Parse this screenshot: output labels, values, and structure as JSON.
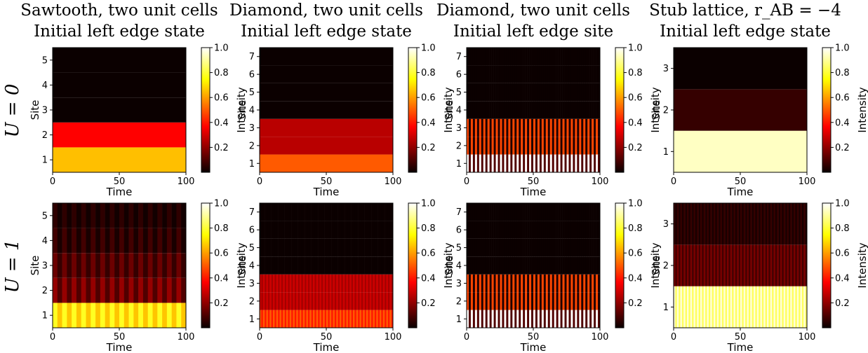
{
  "row_labels": [
    "U = 0",
    "U = 1"
  ],
  "colorbar": {
    "label": "Intensity",
    "ticks": [
      "0.2",
      "0.4",
      "0.6",
      "0.8",
      "1.0"
    ],
    "tick_values": [
      0.2,
      0.4,
      0.6,
      0.8,
      1.0
    ],
    "colormap": "hot"
  },
  "chart_data": [
    {
      "type": "heatmap",
      "row": 0,
      "col": 0,
      "title": "Sawtooth, two unit cells",
      "subtitle": "Initial left edge state",
      "xlabel": "Time",
      "ylabel": "Site",
      "xlim": [
        0,
        100
      ],
      "ylim": [
        0.5,
        5.5
      ],
      "xticks": [
        "0",
        "50",
        "100"
      ],
      "yticks": [
        "1",
        "2",
        "3",
        "4",
        "5"
      ],
      "colorbar_range": [
        0,
        1
      ],
      "sites": [
        1,
        2,
        3,
        4,
        5
      ],
      "intensity": [
        0.65,
        0.35,
        0.0,
        0.0,
        0.0
      ],
      "oscillating": false
    },
    {
      "type": "heatmap",
      "row": 0,
      "col": 1,
      "title": "Diamond, two unit cells",
      "subtitle": "Initial left edge state",
      "xlabel": "Time",
      "ylabel": "Site",
      "xlim": [
        0,
        100
      ],
      "ylim": [
        0.5,
        7.5
      ],
      "xticks": [
        "0",
        "50",
        "100"
      ],
      "yticks": [
        "1",
        "2",
        "3",
        "4",
        "5",
        "6",
        "7"
      ],
      "colorbar_range": [
        0,
        1
      ],
      "sites": [
        1,
        2,
        3,
        4,
        5,
        6,
        7
      ],
      "intensity": [
        0.5,
        0.25,
        0.25,
        0.0,
        0.0,
        0.0,
        0.0
      ],
      "oscillating": false
    },
    {
      "type": "heatmap",
      "row": 0,
      "col": 2,
      "title": "Diamond, two unit cells",
      "subtitle": "Initial left edge site",
      "xlabel": "Time",
      "ylabel": "Site",
      "xlim": [
        0,
        100
      ],
      "ylim": [
        0.5,
        7.5
      ],
      "xticks": [
        "0",
        "50",
        "100"
      ],
      "yticks": [
        "1",
        "2",
        "3",
        "4",
        "5",
        "6",
        "7"
      ],
      "colorbar_range": [
        0,
        1
      ],
      "sites": [
        1,
        2,
        3,
        4,
        5,
        6,
        7
      ],
      "intensity": [
        0.55,
        0.25,
        0.25,
        0.0,
        0.0,
        0.0,
        0.0
      ],
      "oscillating": true,
      "oscillation": {
        "period_count": 32,
        "amplitude": [
          0.45,
          0.22,
          0.22,
          0,
          0,
          0,
          0
        ]
      }
    },
    {
      "type": "heatmap",
      "row": 0,
      "col": 3,
      "title": "Stub lattice, r_AB = −4",
      "subtitle": "Initial left edge state",
      "xlabel": "Time",
      "ylabel": "Site",
      "xlim": [
        0,
        100
      ],
      "ylim": [
        0.5,
        3.5
      ],
      "xticks": [
        "0",
        "50",
        "100"
      ],
      "yticks": [
        "1",
        "2",
        "3"
      ],
      "colorbar_range": [
        0,
        1
      ],
      "sites": [
        1,
        2,
        3
      ],
      "intensity": [
        0.94,
        0.06,
        0.0
      ],
      "oscillating": false
    },
    {
      "type": "heatmap",
      "row": 1,
      "col": 0,
      "title": "",
      "subtitle": "",
      "xlabel": "Time",
      "ylabel": "Site",
      "xlim": [
        0,
        100
      ],
      "ylim": [
        0.5,
        5.5
      ],
      "xticks": [
        "0",
        "50",
        "100"
      ],
      "yticks": [
        "1",
        "2",
        "3",
        "4",
        "5"
      ],
      "colorbar_range": [
        0,
        1
      ],
      "sites": [
        1,
        2,
        3,
        4,
        5
      ],
      "intensity": [
        0.72,
        0.15,
        0.1,
        0.05,
        0.03
      ],
      "oscillating": true,
      "oscillation": {
        "period_count": 14,
        "amplitude": [
          0.06,
          0.05,
          0.04,
          0.03,
          0.02
        ]
      }
    },
    {
      "type": "heatmap",
      "row": 1,
      "col": 1,
      "title": "",
      "subtitle": "",
      "xlabel": "Time",
      "ylabel": "Site",
      "xlim": [
        0,
        100
      ],
      "ylim": [
        0.5,
        7.5
      ],
      "xticks": [
        "0",
        "50",
        "100"
      ],
      "yticks": [
        "1",
        "2",
        "3",
        "4",
        "5",
        "6",
        "7"
      ],
      "colorbar_range": [
        0,
        1
      ],
      "sites": [
        1,
        2,
        3,
        4,
        5,
        6,
        7
      ],
      "intensity": [
        0.45,
        0.25,
        0.25,
        0.0,
        0.0,
        0.0,
        0.0
      ],
      "oscillating": true,
      "oscillation": {
        "period_count": 40,
        "amplitude": [
          0.05,
          0.03,
          0.03,
          0,
          0,
          0,
          0
        ]
      }
    },
    {
      "type": "heatmap",
      "row": 1,
      "col": 2,
      "title": "",
      "subtitle": "",
      "xlabel": "Time",
      "ylabel": "Site",
      "xlim": [
        0,
        100
      ],
      "ylim": [
        0.5,
        7.5
      ],
      "xticks": [
        "0",
        "50",
        "100"
      ],
      "yticks": [
        "1",
        "2",
        "3",
        "4",
        "5",
        "6",
        "7"
      ],
      "colorbar_range": [
        0,
        1
      ],
      "sites": [
        1,
        2,
        3,
        4,
        5,
        6,
        7
      ],
      "intensity": [
        0.55,
        0.25,
        0.25,
        0.0,
        0.0,
        0.0,
        0.0
      ],
      "oscillating": true,
      "oscillation": {
        "period_count": 32,
        "amplitude": [
          0.45,
          0.22,
          0.22,
          0,
          0,
          0,
          0
        ]
      }
    },
    {
      "type": "heatmap",
      "row": 1,
      "col": 3,
      "title": "",
      "subtitle": "",
      "xlabel": "Time",
      "ylabel": "Site",
      "xlim": [
        0,
        100
      ],
      "ylim": [
        0.5,
        3.5
      ],
      "xticks": [
        "0",
        "50",
        "100"
      ],
      "yticks": [
        "1",
        "2",
        "3"
      ],
      "colorbar_range": [
        0,
        1
      ],
      "sites": [
        1,
        2,
        3
      ],
      "intensity": [
        0.9,
        0.12,
        0.04
      ],
      "oscillating": true,
      "oscillation": {
        "period_count": 40,
        "amplitude": [
          0.06,
          0.04,
          0.02
        ]
      }
    }
  ]
}
